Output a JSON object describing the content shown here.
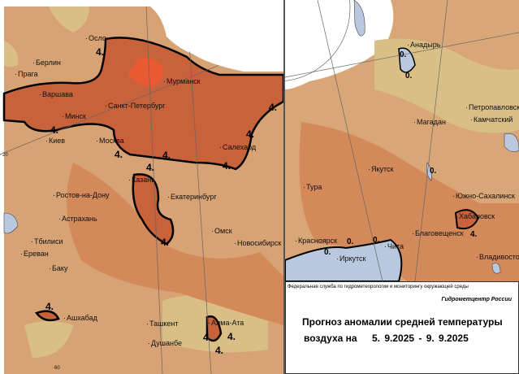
{
  "colors": {
    "anomaly_low": "#d8a374",
    "anomaly_mid": "#d4895a",
    "anomaly_high": "#c8623a",
    "anomaly_peak": "#ea5a32",
    "cool": "#d9bf86",
    "water": "#b9c8de",
    "contour": "#000000"
  },
  "left_map": {
    "cities": [
      "Осло",
      "Берлин",
      "Прага",
      "Мурманск",
      "Варшава",
      "Санкт-Петербург",
      "Минск",
      "Киев",
      "Москва",
      "Салехард",
      "Казань",
      "Екатеринбург",
      "Ростов-на-Дону",
      "Астрахань",
      "Омск",
      "Тбилиси",
      "Новосибирск",
      "Ереван",
      "Баку",
      "Ашхабад",
      "Ташкент",
      "Алма-Ата",
      "Душанбе"
    ],
    "contour_labels": [
      "4.",
      "4.",
      "4.",
      "4.",
      "4.",
      "4.",
      "4.",
      "4.",
      "4.",
      "4.",
      "4.",
      "4.",
      "4."
    ],
    "grid_labels": [
      "20",
      "60"
    ]
  },
  "right_map": {
    "cities": [
      "Анадырь",
      "Петропавловск",
      "Камчатский",
      "Магадан",
      "Якутск",
      "Тура",
      "Южно-Сахалинск",
      "Хабаровск",
      "Благовещенск",
      "Красноярск",
      "Иркутск",
      "Чита",
      "Владивосток"
    ],
    "contour_labels": [
      "0.",
      "0.",
      "0.",
      "0.",
      "0.",
      "0.",
      "4."
    ]
  },
  "info": {
    "agency": "Федеральная служба по гидрометеорологии и мониторингу окружающей среды",
    "center": "Гидрометцентр России",
    "title_line1": "Прогноз аномалии средней температуры",
    "title_line2": "воздуха на",
    "date_range": "5. 9.2025 -  9. 9.2025"
  }
}
